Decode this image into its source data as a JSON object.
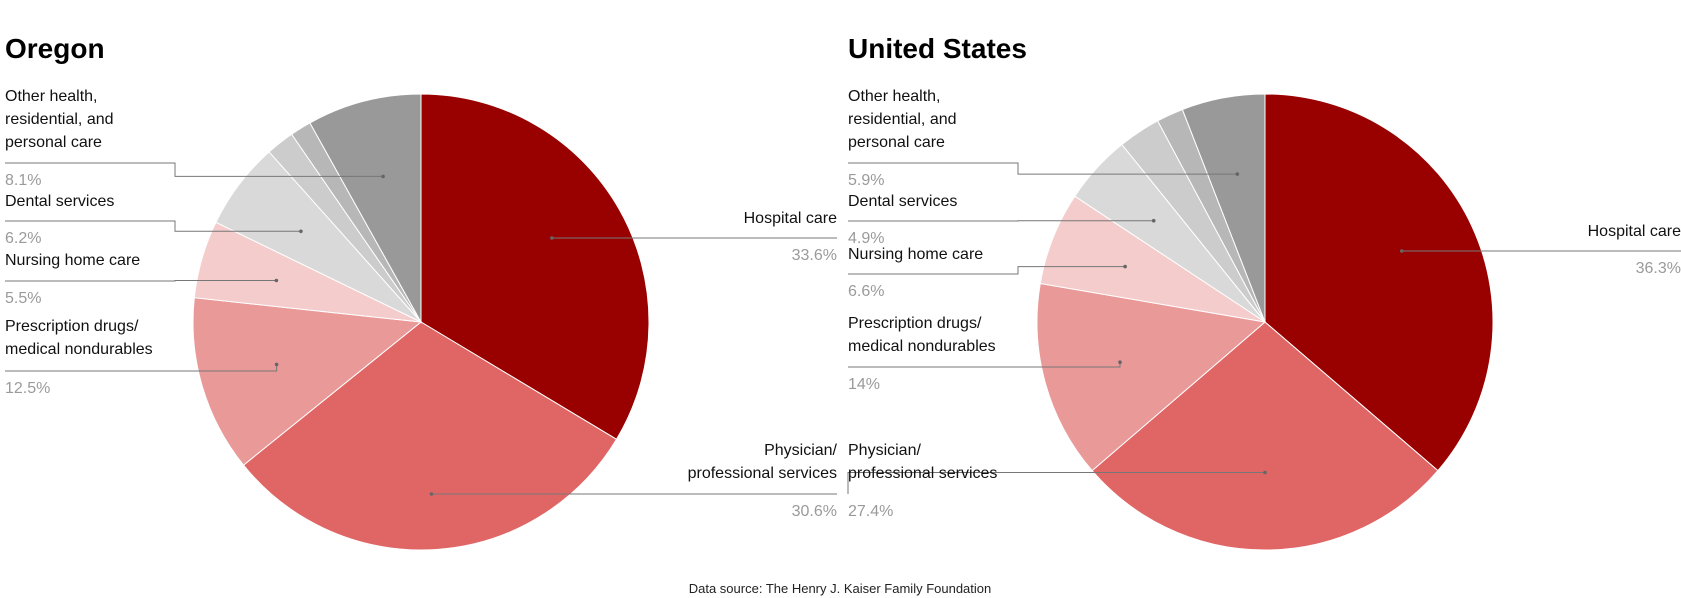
{
  "source": "Data source: The Henry J. Kaiser Family Foundation",
  "chart_data": [
    {
      "type": "pie",
      "title": "Oregon",
      "slices": [
        {
          "name": "Hospital care",
          "label_lines": [
            "Hospital care"
          ],
          "pct_text": "33.6%",
          "value": 33.6,
          "color": "#990000"
        },
        {
          "name": "Physician/ professional services",
          "label_lines": [
            "Physician/",
            "professional services"
          ],
          "pct_text": "30.6%",
          "value": 30.6,
          "color": "#e06666"
        },
        {
          "name": "Prescription drugs/ medical nondurables",
          "label_lines": [
            "Prescription drugs/",
            "medical nondurables"
          ],
          "pct_text": "12.5%",
          "value": 12.5,
          "color": "#ea9999"
        },
        {
          "name": "Nursing home care",
          "label_lines": [
            "Nursing home care"
          ],
          "pct_text": "5.5%",
          "value": 5.5,
          "color": "#f4cccc"
        },
        {
          "name": "Dental services",
          "label_lines": [
            "Dental services"
          ],
          "pct_text": "6.2%",
          "value": 6.2,
          "color": "#d9d9d9"
        },
        {
          "name": "(unlabeled)",
          "label_lines": [],
          "pct_text": "",
          "value": 2.0,
          "color": "#cccccc"
        },
        {
          "name": "(unlabeled)",
          "label_lines": [],
          "pct_text": "",
          "value": 1.5,
          "color": "#b7b7b7"
        },
        {
          "name": "Other health, residential, and personal care",
          "label_lines": [
            "Other health,",
            "residential, and",
            "personal care"
          ],
          "pct_text": "8.1%",
          "value": 8.1,
          "color": "#999999"
        }
      ]
    },
    {
      "type": "pie",
      "title": "United States",
      "slices": [
        {
          "name": "Hospital care",
          "label_lines": [
            "Hospital care"
          ],
          "pct_text": "36.3%",
          "value": 36.3,
          "color": "#990000"
        },
        {
          "name": "Physician/ professional services",
          "label_lines": [
            "Physician/",
            "professional services"
          ],
          "pct_text": "27.4%",
          "value": 27.4,
          "color": "#e06666"
        },
        {
          "name": "Prescription drugs/ medical nondurables",
          "label_lines": [
            "Prescription drugs/",
            "medical nondurables"
          ],
          "pct_text": "14%",
          "value": 14.0,
          "color": "#ea9999"
        },
        {
          "name": "Nursing home care",
          "label_lines": [
            "Nursing home care"
          ],
          "pct_text": "6.6%",
          "value": 6.6,
          "color": "#f4cccc"
        },
        {
          "name": "Dental services",
          "label_lines": [
            "Dental services"
          ],
          "pct_text": "4.9%",
          "value": 4.9,
          "color": "#d9d9d9"
        },
        {
          "name": "(unlabeled)",
          "label_lines": [],
          "pct_text": "",
          "value": 3.0,
          "color": "#cccccc"
        },
        {
          "name": "(unlabeled)",
          "label_lines": [],
          "pct_text": "",
          "value": 1.9,
          "color": "#b7b7b7"
        },
        {
          "name": "Other health, residential, and personal care",
          "label_lines": [
            "Other health,",
            "residential, and",
            "personal care"
          ],
          "pct_text": "5.9%",
          "value": 5.9,
          "color": "#999999"
        }
      ]
    }
  ]
}
